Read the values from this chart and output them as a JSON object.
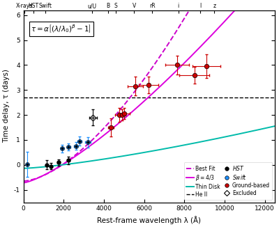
{
  "xlabel": "Rest-frame wavelength λ (Å)",
  "ylabel": "Time delay, τ (days)",
  "xlim": [
    0,
    12500
  ],
  "ylim": [
    -1.5,
    6.2
  ],
  "hst_data": {
    "x": [
      1158,
      1367,
      1746,
      2246
    ],
    "y": [
      0.0,
      -0.05,
      0.1,
      0.18
    ],
    "xerr": [
      50,
      50,
      60,
      70
    ],
    "yerr": [
      0.18,
      0.13,
      0.13,
      0.15
    ],
    "color": "black"
  },
  "swift_data": {
    "x": [
      193,
      1928,
      2246,
      2600,
      2787,
      3200
    ],
    "y": [
      0.02,
      0.65,
      0.72,
      0.75,
      0.95,
      0.9
    ],
    "xerr": [
      20,
      80,
      80,
      90,
      110,
      130
    ],
    "yerr": [
      0.5,
      0.15,
      0.15,
      0.15,
      0.18,
      0.2
    ],
    "color": "#1e90ff"
  },
  "ground_data": {
    "x": [
      4350,
      4750,
      4900,
      5000,
      5550,
      6230,
      7640,
      8500,
      9100
    ],
    "y": [
      1.5,
      2.0,
      2.0,
      2.05,
      3.15,
      3.2,
      4.0,
      3.6,
      3.95
    ],
    "xerr": [
      150,
      180,
      180,
      280,
      380,
      480,
      580,
      750,
      680
    ],
    "yerr": [
      0.35,
      0.28,
      0.22,
      0.22,
      0.38,
      0.33,
      0.38,
      0.33,
      0.48
    ],
    "color": "#cc0000"
  },
  "excluded_data": {
    "x": [
      3465
    ],
    "y": [
      1.9
    ],
    "xerr": [
      180
    ],
    "yerr": [
      0.32
    ],
    "color": "black"
  },
  "best_fit_color": "#cc00cc",
  "beta43_color": "#dd00dd",
  "thin_disk_color": "#00bbaa",
  "heII_color": "black",
  "heII_y": 2.7,
  "filter_positions": [
    50,
    500,
    1100,
    3400,
    4200,
    4600,
    5500,
    6400,
    7700,
    8800,
    9500
  ],
  "filter_names": [
    "X-rays",
    "HST",
    "Swift",
    "u/U",
    "B",
    "S",
    "V",
    "rR",
    "i",
    "I",
    "z"
  ],
  "alpha_best": 0.65,
  "beta_best": 1.62,
  "lambda0_best": 1928,
  "alpha_43": 0.72,
  "lambda0_43": 1928,
  "alpha_thin": 0.14,
  "lambda0_thin": 1928
}
